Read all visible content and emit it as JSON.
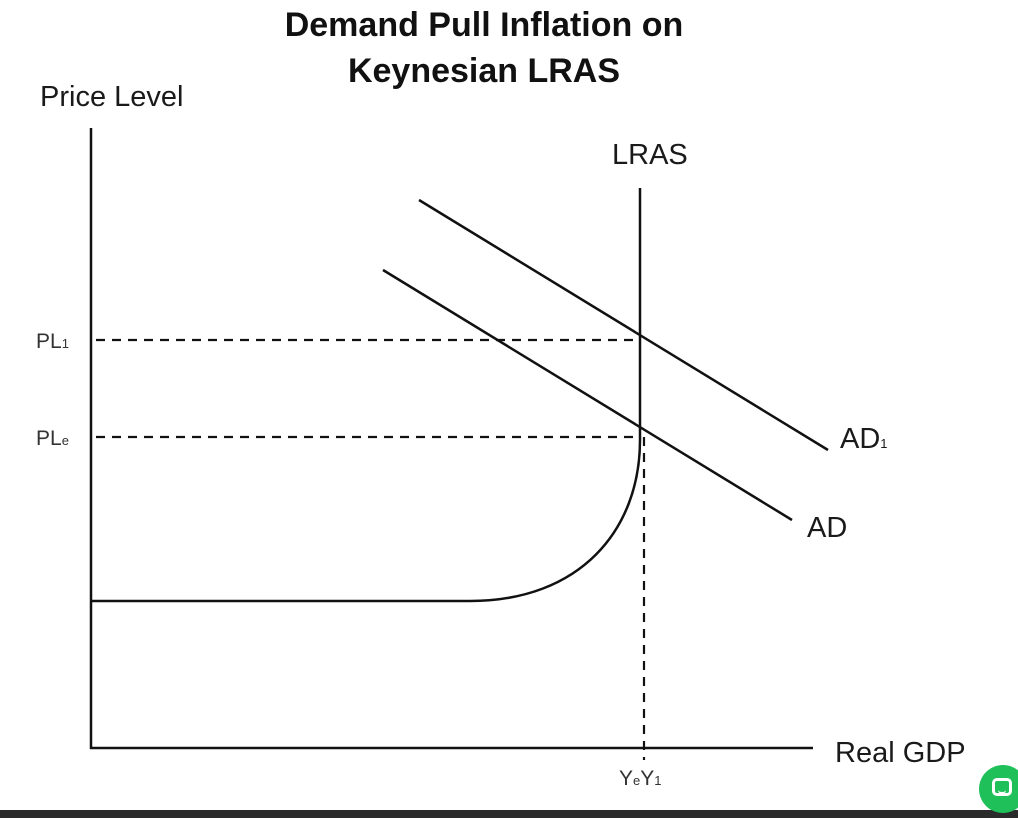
{
  "title_line1": "Demand Pull Inflation on",
  "title_line2": "Keynesian LRAS",
  "y_axis_label": "Price Level",
  "x_axis_label": "Real GDP",
  "lras_label": "LRAS",
  "ad_label": "AD",
  "ad1": {
    "main": "AD",
    "sub": "1"
  },
  "pl1": {
    "main": "PL",
    "sub": "1"
  },
  "ple": {
    "main": "PL",
    "sub": "e"
  },
  "ye": {
    "main": "Y",
    "sub": "e"
  },
  "y1": {
    "main": "Y",
    "sub": "1"
  },
  "colors": {
    "line": "#111111",
    "chat_button": "#1fbf5a"
  },
  "icons": {
    "chat": "chat-bubble-icon"
  }
}
